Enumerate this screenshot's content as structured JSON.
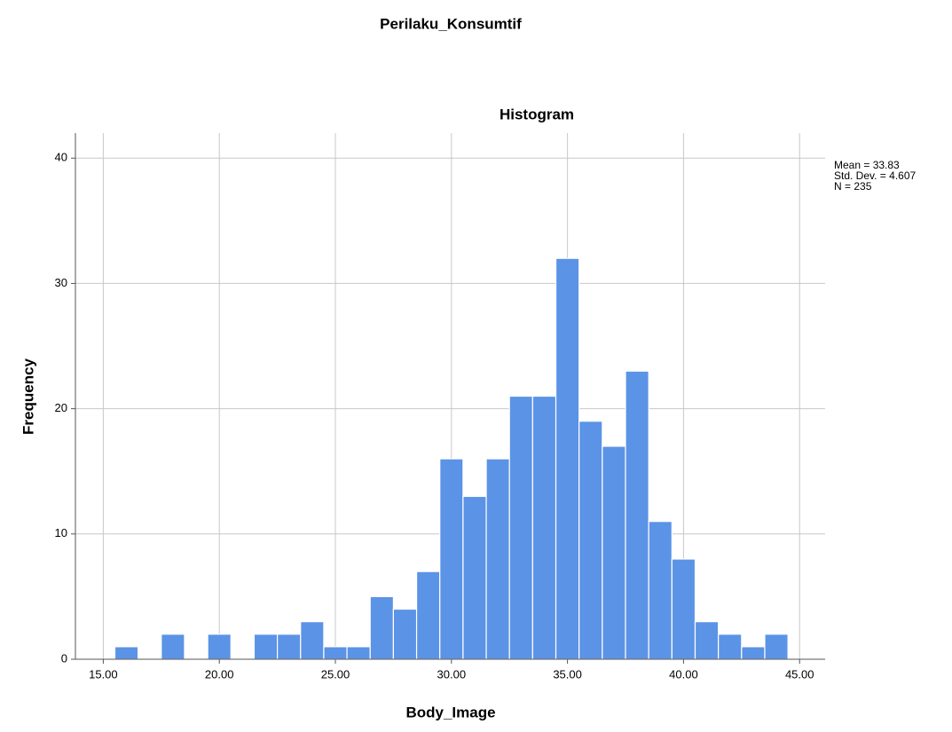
{
  "chart_data": {
    "type": "histogram",
    "header": "Perilaku_Konsumtif",
    "title": "Histogram",
    "x_label": "Body_Image",
    "y_label": "Frequency",
    "stats": [
      "Mean = 33.83",
      "Std. Dev. = 4.607",
      "N = 235"
    ],
    "bins": [
      15.5,
      16.5,
      17.5,
      18.5,
      19.5,
      20.5,
      21.5,
      22.5,
      23.5,
      24.5,
      25.5,
      26.5,
      27.5,
      28.5,
      29.5,
      30.5,
      31.5,
      32.5,
      33.5,
      34.5,
      35.5,
      36.5,
      37.5,
      38.5,
      39.5,
      40.5,
      41.5,
      42.5,
      43.5,
      44.5
    ],
    "counts": [
      1,
      0,
      2,
      0,
      2,
      0,
      2,
      2,
      3,
      1,
      1,
      5,
      4,
      7,
      16,
      13,
      16,
      21,
      21,
      32,
      19,
      17,
      23,
      11,
      8,
      3,
      2,
      1,
      2
    ],
    "color": "#5b93e6",
    "xlim": [
      13.8,
      46.1
    ],
    "ylim": [
      0,
      42
    ],
    "xticks": [
      {
        "value": 15,
        "label": "15.00"
      },
      {
        "value": 20,
        "label": "20.00"
      },
      {
        "value": 25,
        "label": "25.00"
      },
      {
        "value": 30,
        "label": "30.00"
      },
      {
        "value": 35,
        "label": "35.00"
      },
      {
        "value": 40,
        "label": "40.00"
      },
      {
        "value": 45,
        "label": "45.00"
      }
    ],
    "yticks": [
      0,
      10,
      20,
      30,
      40
    ],
    "grid": true
  }
}
